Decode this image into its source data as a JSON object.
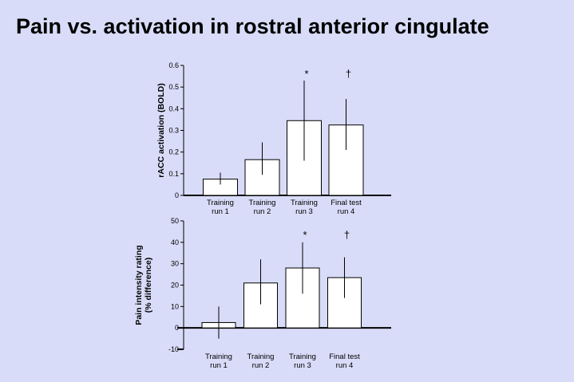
{
  "title": "Pain vs. activation in rostral anterior cingulate",
  "colors": {
    "background": "#d8dcf8",
    "bar_fill": "#ffffff",
    "ink": "#000000"
  },
  "chart_data": [
    {
      "type": "bar",
      "title": "",
      "categories": [
        [
          "Training",
          "run 1"
        ],
        [
          "Training",
          "run 2"
        ],
        [
          "Training",
          "run 3"
        ],
        [
          "Final test",
          "run 4"
        ]
      ],
      "values": [
        0.075,
        0.165,
        0.345,
        0.325
      ],
      "error_low": [
        0.05,
        0.095,
        0.16,
        0.21
      ],
      "error_high": [
        0.105,
        0.245,
        0.53,
        0.445
      ],
      "ylabel": "rACC activation (BOLD)",
      "ylabel_lines": [
        "rACC activation (BOLD)"
      ],
      "xlabel": "",
      "ylim": [
        0,
        0.6
      ],
      "yticks": [
        0,
        0.1,
        0.2,
        0.3,
        0.4,
        0.5,
        0.6
      ],
      "ytick_labels": [
        "0",
        "0.1",
        "0.2",
        "0.3",
        "0.4",
        "0.5",
        "0.6"
      ],
      "annotations": [
        {
          "category": 2,
          "text": "*"
        },
        {
          "category": 3,
          "text": "†"
        }
      ]
    },
    {
      "type": "bar",
      "title": "",
      "categories": [
        [
          "Training",
          "run 1"
        ],
        [
          "Training",
          "run 2"
        ],
        [
          "Training",
          "run 3"
        ],
        [
          "Final test",
          "run 4"
        ]
      ],
      "values": [
        2.5,
        21,
        28,
        23.5
      ],
      "error_low": [
        -5,
        11,
        16,
        14
      ],
      "error_high": [
        10,
        32,
        40,
        33
      ],
      "ylabel": "Pain intensity rating (% difference)",
      "ylabel_lines": [
        "Pain intensity rating",
        "(% difference)"
      ],
      "xlabel": "",
      "ylim": [
        -10,
        50
      ],
      "yticks": [
        -10,
        0,
        10,
        20,
        30,
        40,
        50
      ],
      "ytick_labels": [
        "-10",
        "0",
        "10",
        "20",
        "30",
        "40",
        "50"
      ],
      "annotations": [
        {
          "category": 2,
          "text": "*"
        },
        {
          "category": 3,
          "text": "†"
        }
      ]
    }
  ]
}
